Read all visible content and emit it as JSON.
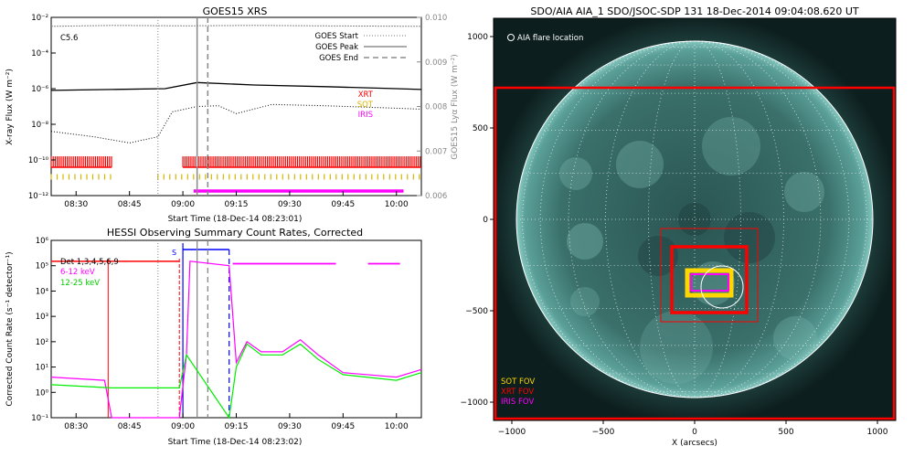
{
  "colors": {
    "xrt": "#ff0000",
    "sot": "#ffd700",
    "iris": "#ff00ff",
    "hessi_det": "#000000",
    "hessi_6_12": "#ff00ff",
    "hessi_12_25": "#00ee00",
    "lya": "#888888",
    "solar_bg": "#0d1e1e",
    "solar_disk": "#3f7f7a",
    "solar_limb": "#ffffff",
    "overlay_blue": "#0000ff"
  },
  "chart_data": [
    {
      "type": "line",
      "title": "GOES15 XRS",
      "xlabel": "Start Time (18-Dec-14 08:23:01)",
      "ylabel": "X-ray Flux (W m⁻²)",
      "y2label": "GOES15 Lyα Flux (W m⁻²)",
      "xlim": [
        "08:23",
        "10:07"
      ],
      "xticks": [
        "08:30",
        "08:45",
        "09:00",
        "09:15",
        "09:30",
        "09:45",
        "10:00"
      ],
      "ylim": [
        1e-12,
        0.01
      ],
      "yscale": "log",
      "yticks": [
        "10⁻¹²",
        "10⁻¹⁰",
        "10⁻⁸",
        "10⁻⁶",
        "10⁻⁴",
        "10⁻²"
      ],
      "y2lim": [
        0.006,
        0.01
      ],
      "y2ticks": [
        "0.006",
        "0.007",
        "0.008",
        "0.009",
        "0.010"
      ],
      "annotation": "C5.6",
      "legend": [
        "GOES Start",
        "GOES Peak",
        "GOES End"
      ],
      "legend2": [
        "XRT",
        "SOT",
        "IRIS"
      ],
      "vlines": {
        "goes_start": "08:53",
        "goes_peak": "09:04",
        "goes_end": "09:07"
      },
      "series": [
        {
          "name": "lya",
          "x": [
            "08:23",
            "08:40",
            "09:00",
            "09:20",
            "09:40",
            "10:07"
          ],
          "y": [
            0.0098,
            0.00982,
            0.00981,
            0.00982,
            0.00981,
            0.0098
          ]
        },
        {
          "name": "long",
          "x": [
            "08:23",
            "08:40",
            "08:55",
            "09:04",
            "09:20",
            "09:40",
            "10:00",
            "10:07"
          ],
          "y": [
            8e-07,
            9e-07,
            1e-06,
            2.2e-06,
            1.6e-06,
            1.3e-06,
            1e-06,
            9e-07
          ]
        },
        {
          "name": "short",
          "x": [
            "08:23",
            "08:35",
            "08:45",
            "08:53",
            "08:57",
            "09:04",
            "09:10",
            "09:15",
            "09:25",
            "09:40",
            "10:00",
            "10:07"
          ],
          "y": [
            4e-09,
            2e-09,
            9e-10,
            2e-09,
            5e-08,
            1e-07,
            1.1e-07,
            4e-08,
            1.3e-07,
            1.1e-07,
            8e-08,
            7e-08
          ]
        }
      ],
      "instrument_coverage": {
        "xrt": [
          [
            "08:23",
            "08:40"
          ],
          [
            "09:00",
            "10:07"
          ]
        ],
        "sot": [
          [
            "08:23",
            "08:40"
          ],
          [
            "08:53",
            "10:07"
          ]
        ],
        "iris": [
          [
            "09:03",
            "10:02"
          ]
        ]
      }
    },
    {
      "type": "line",
      "title": "HESSI Observing Summary Count Rates, Corrected",
      "xlabel": "Start Time (18-Dec-14 08:23:02)",
      "ylabel": "Corrected Count Rate (s⁻¹ detector⁻¹)",
      "xlim": [
        "08:23",
        "10:07"
      ],
      "xticks": [
        "08:30",
        "08:45",
        "09:00",
        "09:15",
        "09:30",
        "09:45",
        "10:00"
      ],
      "ylim": [
        0.1,
        1000000.0
      ],
      "yscale": "log",
      "yticks": [
        "10⁻¹",
        "10⁰",
        "10¹",
        "10²",
        "10³",
        "10⁴",
        "10⁵",
        "10⁶"
      ],
      "legend": [
        "Det 1,3,4,5,6,9",
        "6-12 keV",
        "12-25 keV"
      ],
      "marker_s": "S",
      "series": [
        {
          "name": "6-12 keV",
          "x": [
            "08:23",
            "08:38",
            "08:40",
            "08:59",
            "09:01",
            "09:02",
            "09:13",
            "09:15",
            "09:18",
            "09:22",
            "09:28",
            "09:33",
            "09:38",
            "09:45",
            "10:00",
            "10:07"
          ],
          "y": [
            4,
            3,
            0.1,
            0.1,
            30,
            150000,
            100000,
            15,
            100,
            40,
            40,
            120,
            30,
            6,
            4,
            8
          ]
        },
        {
          "name": "12-25 keV",
          "x": [
            "08:23",
            "08:40",
            "08:59",
            "09:01",
            "09:13",
            "09:15",
            "09:18",
            "09:22",
            "09:28",
            "09:33",
            "09:38",
            "09:45",
            "10:00",
            "10:07"
          ],
          "y": [
            2,
            1.5,
            1.5,
            30,
            0.1,
            10,
            80,
            30,
            30,
            80,
            20,
            5,
            3,
            6
          ]
        }
      ]
    },
    {
      "type": "other",
      "title": "SDO/AIA AIA_1 SDO/JSOC-SDP 131 18-Dec-2014 09:04:08.620 UT",
      "xlabel": "X (arcsecs)",
      "xlim": [
        -1100,
        1100
      ],
      "ylim": [
        -1100,
        1100
      ],
      "xticks": [
        "−1000",
        "−500",
        "0",
        "500",
        "1000"
      ],
      "yticks": [
        "−1000",
        "−500",
        "0",
        "500",
        "1000"
      ],
      "disk_radius_arcsec": 975,
      "flare_location_label": "AIA flare location",
      "flare_location": [
        150,
        -370
      ],
      "fov_legend": [
        "SOT FOV",
        "XRT FOV",
        "IRIS FOV"
      ],
      "fov_boxes": {
        "xrt_large": [
          [
            -1090,
            1090
          ],
          [
            -1090,
            720
          ]
        ],
        "xrt": [
          [
            -125,
            285
          ],
          [
            -510,
            -150
          ]
        ],
        "context": [
          [
            -185,
            345
          ],
          [
            -560,
            -50
          ]
        ],
        "sot": [
          [
            -40,
            200
          ],
          [
            -415,
            -280
          ]
        ],
        "iris": [
          [
            -20,
            185
          ],
          [
            -390,
            -300
          ]
        ]
      }
    }
  ]
}
